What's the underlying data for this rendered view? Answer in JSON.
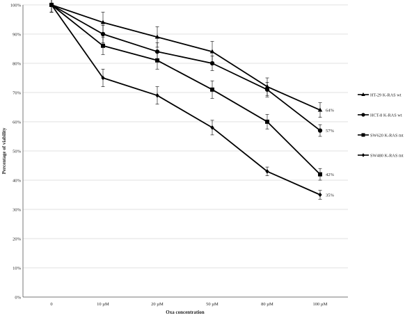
{
  "chart_data": {
    "type": "line",
    "title": "",
    "xlabel": "Oxa concentration",
    "ylabel": "Percentage of viability",
    "categories": [
      "0",
      "10 µM",
      "20 µM",
      "50 µM",
      "80 µM",
      "100 µM"
    ],
    "ylim": [
      0,
      100
    ],
    "yticks": [
      "0%",
      "10%",
      "20%",
      "30%",
      "40%",
      "50%",
      "60%",
      "70%",
      "80%",
      "90%",
      "100%"
    ],
    "yticks_values": [
      0,
      10,
      20,
      30,
      40,
      50,
      60,
      70,
      80,
      90,
      100
    ],
    "grid": true,
    "legend_position": "right",
    "series": [
      {
        "name": "HT-29 K-RAS wt",
        "marker": "triangle",
        "values": [
          100,
          94,
          89,
          84,
          72,
          64
        ],
        "errors": [
          2.5,
          3.5,
          3.5,
          3.5,
          3,
          2.5
        ],
        "end_label": "64%"
      },
      {
        "name": "HCT-8 K-RAS wt",
        "marker": "circle",
        "values": [
          100,
          90,
          84,
          80,
          71,
          57
        ],
        "errors": [
          2.5,
          3,
          3,
          2.5,
          2.5,
          2
        ],
        "end_label": "57%"
      },
      {
        "name": "SW620 K-RAS mt",
        "marker": "square",
        "values": [
          100,
          86,
          81,
          71,
          60,
          42
        ],
        "errors": [
          2.5,
          3,
          3,
          3,
          2.5,
          2
        ],
        "end_label": "42%"
      },
      {
        "name": "SW480 K-RAS mt",
        "marker": "diamond",
        "values": [
          100,
          75,
          69,
          58,
          43,
          35
        ],
        "errors": [
          2.5,
          3,
          3,
          2.5,
          1.5,
          1.5
        ],
        "end_label": "35%"
      }
    ]
  }
}
